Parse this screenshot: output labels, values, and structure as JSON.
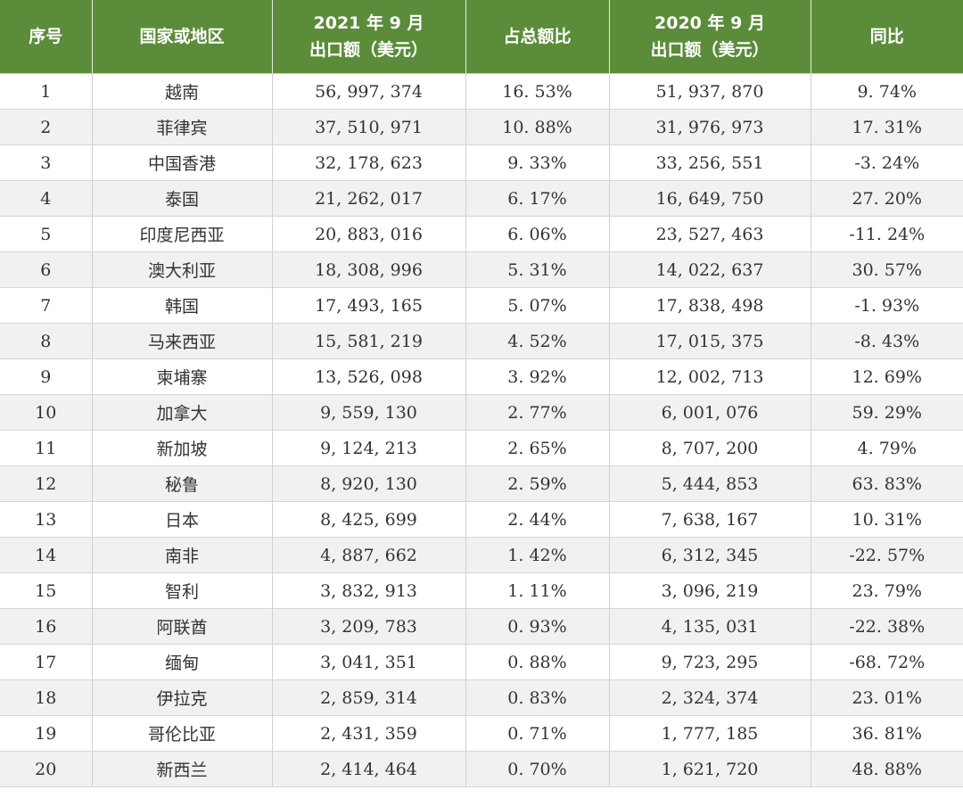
{
  "table": {
    "headers": [
      [
        "序号"
      ],
      [
        "国家或地区"
      ],
      [
        "2021 年 9 月",
        "出口额（美元）"
      ],
      [
        "占总额比"
      ],
      [
        "2020 年 9 月",
        "出口额（美元）"
      ],
      [
        "同比"
      ]
    ],
    "rows": [
      [
        "1",
        "越南",
        "56, 997, 374",
        "16. 53%",
        "51, 937, 870",
        "9. 74%"
      ],
      [
        "2",
        "菲律宾",
        "37, 510, 971",
        "10. 88%",
        "31, 976, 973",
        "17. 31%"
      ],
      [
        "3",
        "中国香港",
        "32, 178, 623",
        "9. 33%",
        "33, 256, 551",
        "-3. 24%"
      ],
      [
        "4",
        "泰国",
        "21, 262, 017",
        "6. 17%",
        "16, 649, 750",
        "27. 20%"
      ],
      [
        "5",
        "印度尼西亚",
        "20, 883, 016",
        "6. 06%",
        "23, 527, 463",
        "-11. 24%"
      ],
      [
        "6",
        "澳大利亚",
        "18, 308, 996",
        "5. 31%",
        "14, 022, 637",
        "30. 57%"
      ],
      [
        "7",
        "韩国",
        "17, 493, 165",
        "5. 07%",
        "17, 838, 498",
        "-1. 93%"
      ],
      [
        "8",
        "马来西亚",
        "15, 581, 219",
        "4. 52%",
        "17, 015, 375",
        "-8. 43%"
      ],
      [
        "9",
        "柬埔寨",
        "13, 526, 098",
        "3. 92%",
        "12, 002, 713",
        "12. 69%"
      ],
      [
        "10",
        "加拿大",
        "9, 559, 130",
        "2. 77%",
        "6, 001, 076",
        "59. 29%"
      ],
      [
        "11",
        "新加坡",
        "9, 124, 213",
        "2. 65%",
        "8, 707, 200",
        "4. 79%"
      ],
      [
        "12",
        "秘鲁",
        "8, 920, 130",
        "2. 59%",
        "5, 444, 853",
        "63. 83%"
      ],
      [
        "13",
        "日本",
        "8, 425, 699",
        "2. 44%",
        "7, 638, 167",
        "10. 31%"
      ],
      [
        "14",
        "南非",
        "4, 887, 662",
        "1. 42%",
        "6, 312, 345",
        "-22. 57%"
      ],
      [
        "15",
        "智利",
        "3, 832, 913",
        "1. 11%",
        "3, 096, 219",
        "23. 79%"
      ],
      [
        "16",
        "阿联酋",
        "3, 209, 783",
        "0. 93%",
        "4, 135, 031",
        "-22. 38%"
      ],
      [
        "17",
        "缅甸",
        "3, 041, 351",
        "0. 88%",
        "9, 723, 295",
        "-68. 72%"
      ],
      [
        "18",
        "伊拉克",
        "2, 859, 314",
        "0. 83%",
        "2, 324, 374",
        "23. 01%"
      ],
      [
        "19",
        "哥伦比亚",
        "2, 431, 359",
        "0. 71%",
        "1, 777, 185",
        "36. 81%"
      ],
      [
        "20",
        "新西兰",
        "2, 414, 464",
        "0. 70%",
        "1, 621, 720",
        "48. 88%"
      ]
    ]
  },
  "colors": {
    "header_background": "#5b8c3a",
    "header_text": "#ffffff",
    "row_stripe": "#f1f1f1",
    "cell_text": "#333333"
  }
}
